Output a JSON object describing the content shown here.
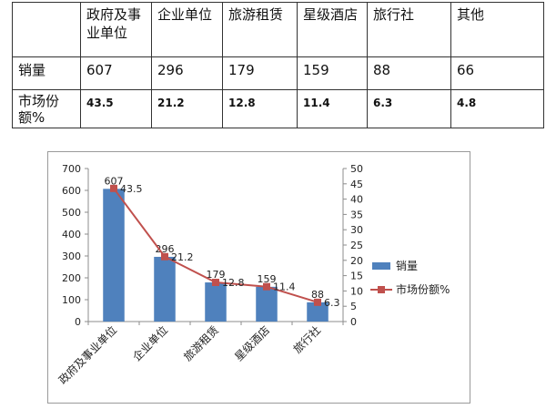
{
  "table": {
    "headers": [
      "",
      "政府及事业单位",
      "企业单位",
      "旅游租赁",
      "星级酒店",
      "旅行社",
      "其他"
    ],
    "rows": [
      {
        "label": "销量",
        "values": [
          "607",
          "296",
          "179",
          "159",
          "88",
          "66"
        ]
      },
      {
        "label": "市场份额%",
        "values": [
          "43.5",
          "21.2",
          "12.8",
          "11.4",
          "6.3",
          "4.8"
        ]
      }
    ]
  },
  "chart_data": {
    "type": "bar",
    "categories": [
      "政府及事业单位",
      "企业单位",
      "旅游租赁",
      "星级酒店",
      "旅行社"
    ],
    "series": [
      {
        "name": "销量",
        "type": "bar",
        "axis": "left",
        "values": [
          607,
          296,
          179,
          159,
          88
        ],
        "labels": [
          "607",
          "296",
          "179",
          "159",
          "88"
        ],
        "color": "#4f81bd"
      },
      {
        "name": "市场份额%",
        "type": "line",
        "axis": "right",
        "values": [
          43.5,
          21.2,
          12.8,
          11.4,
          6.3
        ],
        "labels": [
          "43.5",
          "21.2",
          "12.8",
          "11.4",
          "6.3"
        ],
        "color": "#c0504d"
      }
    ],
    "y_left": {
      "min": 0,
      "max": 700,
      "ticks": [
        0,
        100,
        200,
        300,
        400,
        500,
        600,
        700
      ]
    },
    "y_right": {
      "min": 0,
      "max": 50,
      "ticks": [
        0,
        5,
        10,
        15,
        20,
        25,
        30,
        35,
        40,
        45,
        50
      ]
    },
    "legend_position": "right",
    "grid": false
  }
}
